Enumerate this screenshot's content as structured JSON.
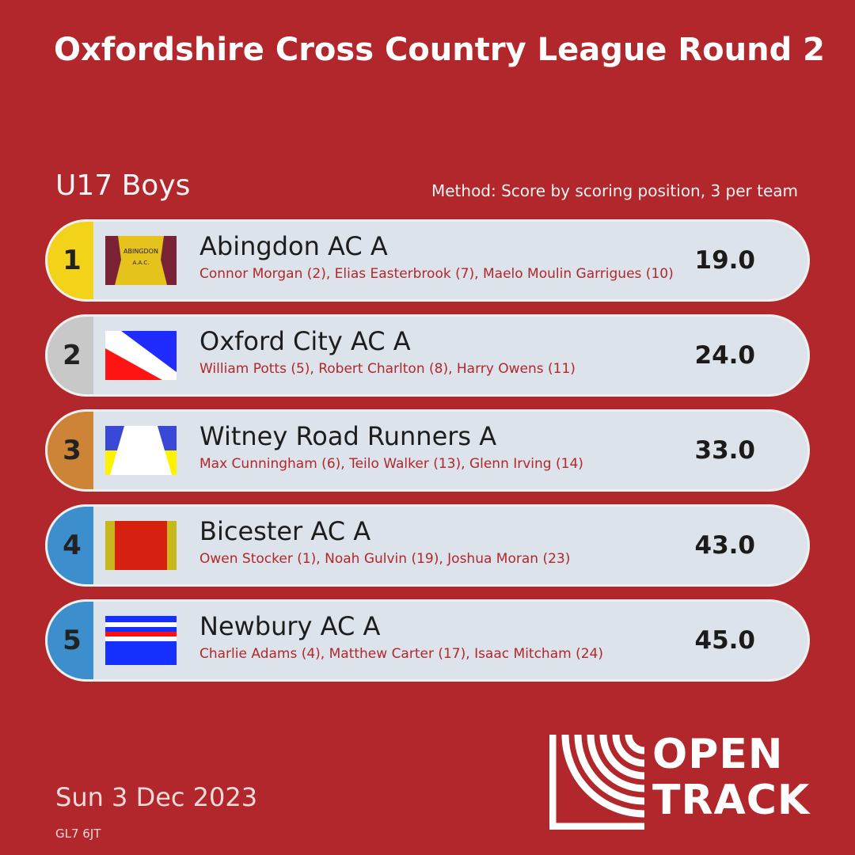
{
  "title": "Oxfordshire Cross Country League Round 2",
  "category": "U17 Boys",
  "method": "Method: Score by scoring position, 3 per team",
  "results": [
    {
      "position": "1",
      "team": "Abingdon AC A",
      "members": "Connor Morgan (2), Elias Easterbrook (7), Maelo Moulin Garrigues (10)",
      "score": "19.0",
      "medal_color": "#f3d21a",
      "vest_icon": "abingdon-vest-icon",
      "vest_text": "ABINGDON A.A.C."
    },
    {
      "position": "2",
      "team": "Oxford City AC A",
      "members": "William Potts (5), Robert Charlton (8), Harry Owens (11)",
      "score": "24.0",
      "medal_color": "#c8c8c8",
      "vest_icon": "oxford-city-vest-icon"
    },
    {
      "position": "3",
      "team": "Witney Road Runners A",
      "members": "Max Cunningham (6), Teilo Walker (13), Glenn Irving (14)",
      "score": "33.0",
      "medal_color": "#cd8436",
      "vest_icon": "witney-vest-icon"
    },
    {
      "position": "4",
      "team": "Bicester AC A",
      "members": "Owen Stocker (1), Noah Gulvin (19), Joshua Moran (23)",
      "score": "43.0",
      "medal_color": "#3c8fcc",
      "vest_icon": "bicester-vest-icon"
    },
    {
      "position": "5",
      "team": "Newbury AC A",
      "members": "Charlie Adams (4), Matthew Carter (17), Isaac Mitcham (24)",
      "score": "45.0",
      "medal_color": "#3c8fcc",
      "vest_icon": "newbury-vest-icon"
    }
  ],
  "date": "Sun 3 Dec 2023",
  "postcode": "GL7 6JT",
  "logo": {
    "line1": "OPEN",
    "line2": "TRACK"
  }
}
